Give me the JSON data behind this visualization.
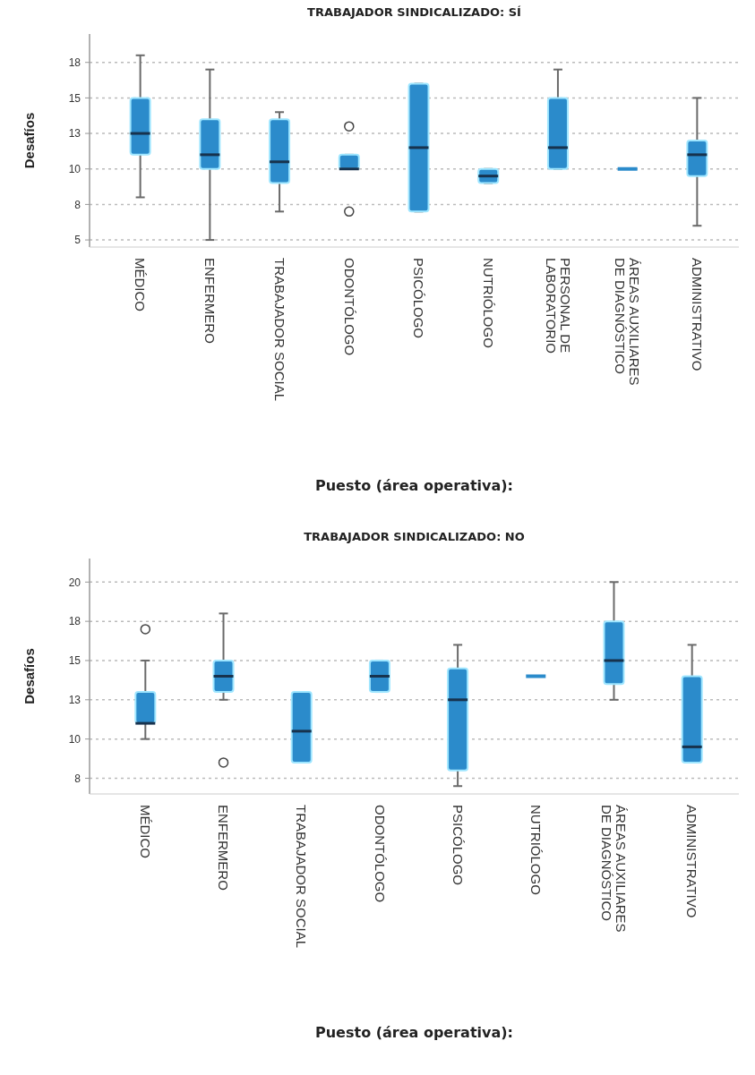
{
  "chart_data": [
    {
      "type": "box",
      "title": "TRABAJADOR SINDICALIZADO: SÍ",
      "xlabel": "Puesto (área operativa):",
      "ylabel": "Desafíos",
      "color": "#2b8bcb",
      "grid": "y",
      "ylim": [
        4.5,
        19.5
      ],
      "yticks": [
        5,
        {
          "value": 7.5,
          "label": "8"
        },
        10,
        {
          "value": 12.5,
          "label": "13"
        },
        15,
        {
          "value": 17.5,
          "label": "18"
        }
      ],
      "categories": [
        "MÉDICO",
        "ENFERMERO",
        "TRABAJADOR SOCIAL",
        "ODONTÓLOGO",
        "PSICÓLOGO",
        "NUTRIÓLOGO",
        "PERSONAL DE LABORATORIO",
        "ÁREAS AUXILIARES DE DIAGNÓSTICO",
        "ADMINISTRATIVO"
      ],
      "boxes": [
        {
          "low": 8,
          "q1": 11,
          "median": 12.5,
          "q3": 15,
          "high": 18
        },
        {
          "low": 5,
          "q1": 10,
          "median": 11,
          "q3": 13.5,
          "high": 17
        },
        {
          "low": 7,
          "q1": 9,
          "median": 10.5,
          "q3": 13.5,
          "high": 14
        },
        {
          "low": 10,
          "q1": 10,
          "median": 10,
          "q3": 11,
          "high": 11,
          "outliers": [
            13,
            7
          ]
        },
        {
          "low": 7,
          "q1": 7,
          "median": 11.5,
          "q3": 16,
          "high": 16
        },
        {
          "low": 9,
          "q1": 9,
          "median": 9.5,
          "q3": 10,
          "high": 10
        },
        {
          "low": 10,
          "q1": 10,
          "median": 11.5,
          "q3": 15,
          "high": 17
        },
        {
          "low": 10,
          "q1": 10,
          "median": 10,
          "q3": 10,
          "high": 10
        },
        {
          "low": 6,
          "q1": 9.5,
          "median": 11,
          "q3": 12,
          "high": 15
        }
      ]
    },
    {
      "type": "box",
      "title": "TRABAJADOR SINDICALIZADO: NO",
      "xlabel": "Puesto (área operativa):",
      "ylabel": "Desafíos",
      "color": "#2b8bcb",
      "grid": "y",
      "ylim": [
        6.5,
        21.5
      ],
      "yticks": [
        {
          "value": 7.5,
          "label": "8"
        },
        10,
        {
          "value": 12.5,
          "label": "13"
        },
        15,
        {
          "value": 17.5,
          "label": "18"
        },
        20
      ],
      "categories": [
        "MÉDICO",
        "ENFERMERO",
        "TRABAJADOR SOCIAL",
        "ODONTÓLOGO",
        "PSICÓLOGO",
        "NUTRIÓLOGO",
        "ÁREAS AUXILIARES DE DIAGNÓSTICO",
        "ADMINISTRATIVO"
      ],
      "boxes": [
        {
          "low": 10,
          "q1": 11,
          "median": 11,
          "q3": 13,
          "high": 15,
          "outliers": [
            17
          ]
        },
        {
          "low": 12.5,
          "q1": 13,
          "median": 14,
          "q3": 15,
          "high": 18,
          "outliers": [
            8.5
          ]
        },
        {
          "low": 8.5,
          "q1": 8.5,
          "median": 10.5,
          "q3": 13,
          "high": 13
        },
        {
          "low": 13,
          "q1": 13,
          "median": 14,
          "q3": 15,
          "high": 15
        },
        {
          "low": 7,
          "q1": 8,
          "median": 12.5,
          "q3": 14.5,
          "high": 16
        },
        {
          "low": 14,
          "q1": 14,
          "median": 14,
          "q3": 14,
          "high": 14
        },
        {
          "low": 12.5,
          "q1": 13.5,
          "median": 15,
          "q3": 17.5,
          "high": 20
        },
        {
          "low": 8.5,
          "q1": 8.5,
          "median": 9.5,
          "q3": 14,
          "high": 16
        }
      ]
    }
  ]
}
